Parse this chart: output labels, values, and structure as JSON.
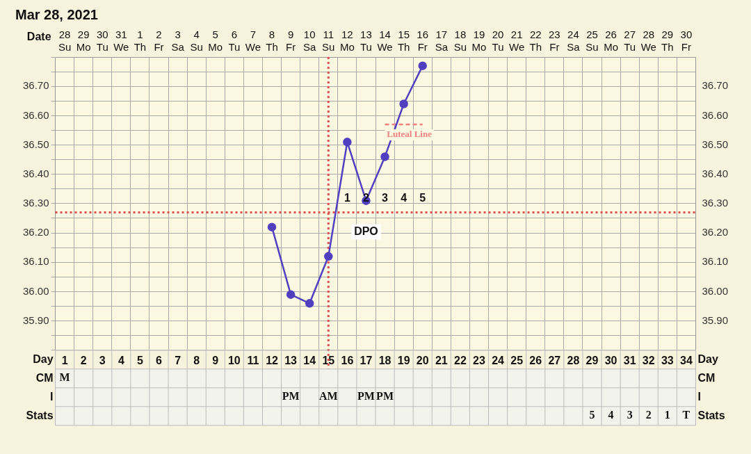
{
  "chart_data": {
    "type": "line",
    "title": "Mar 28, 2021",
    "xlabel": "Date",
    "x2label": "Day",
    "categories": [
      "28\nSu",
      "29\nMo",
      "30\nTu",
      "31\nWe",
      "1\nTh",
      "2\nFr",
      "3\nSa",
      "4\nSu",
      "5\nMo",
      "6\nTu",
      "7\nWe",
      "8\nTh",
      "9\nFr",
      "10\nSa",
      "11\nSu",
      "12\nMo",
      "13\nTu",
      "14\nWe",
      "15\nTh",
      "16\nFr",
      "17\nSa",
      "18\nSu",
      "19\nMo",
      "20\nTu",
      "21\nWe",
      "22\nTh",
      "23\nFr",
      "24\nSa",
      "25\nSu",
      "26\nMo",
      "27\nTu",
      "28\nWe",
      "29\nTh",
      "30\nFr"
    ],
    "series": [
      {
        "color": "#5040c0",
        "values": [
          null,
          null,
          null,
          null,
          null,
          null,
          null,
          null,
          null,
          null,
          null,
          36.22,
          35.99,
          35.96,
          36.12,
          36.51,
          36.31,
          36.46,
          36.64,
          36.77,
          null,
          null,
          null,
          null,
          null,
          null,
          null,
          null,
          null,
          null,
          null,
          null,
          null,
          null
        ]
      },
      {
        "name": "Luteal Line",
        "color": "#f08080",
        "line_style": "dashed",
        "marker": "none",
        "values": [
          null,
          null,
          null,
          null,
          null,
          null,
          null,
          null,
          null,
          null,
          null,
          null,
          null,
          null,
          null,
          null,
          null,
          36.57,
          36.57,
          36.57,
          null,
          null,
          null,
          null,
          null,
          null,
          null,
          null,
          null,
          null,
          null,
          null,
          null,
          null
        ]
      }
    ],
    "ylim": [
      35.8,
      36.8
    ],
    "yticks": [
      {
        "value": 35.8,
        "label": null
      },
      {
        "value": 35.85,
        "label": null
      },
      {
        "value": 35.9,
        "label": "35.90"
      },
      {
        "value": 35.95,
        "label": null
      },
      {
        "value": 36.0,
        "label": "36.00"
      },
      {
        "value": 36.05,
        "label": null
      },
      {
        "value": 36.1,
        "label": "36.10"
      },
      {
        "value": 36.15,
        "label": null
      },
      {
        "value": 36.2,
        "label": "36.20"
      },
      {
        "value": 36.25,
        "label": null
      },
      {
        "value": 36.3,
        "label": "36.30"
      },
      {
        "value": 36.35,
        "label": null
      },
      {
        "value": 36.4,
        "label": "36.40"
      },
      {
        "value": 36.45,
        "label": null
      },
      {
        "value": 36.5,
        "label": "36.50"
      },
      {
        "value": 36.55,
        "label": null
      },
      {
        "value": 36.6,
        "label": "36.60"
      },
      {
        "value": 36.65,
        "label": null
      },
      {
        "value": 36.7,
        "label": "36.70"
      },
      {
        "value": 36.75,
        "label": null
      },
      {
        "value": 36.8,
        "label": null
      }
    ],
    "y2lim": [
      35.8,
      36.8
    ],
    "y2ticks": [
      {
        "value": 35.8,
        "label": null
      },
      {
        "value": 35.85,
        "label": null
      },
      {
        "value": 35.9,
        "label": "35.90"
      },
      {
        "value": 35.95,
        "label": null
      },
      {
        "value": 36.0,
        "label": "36.00"
      },
      {
        "value": 36.05,
        "label": null
      },
      {
        "value": 36.1,
        "label": "36.10"
      },
      {
        "value": 36.15,
        "label": null
      },
      {
        "value": 36.2,
        "label": "36.20"
      },
      {
        "value": 36.25,
        "label": null
      },
      {
        "value": 36.3,
        "label": "36.30"
      },
      {
        "value": 36.35,
        "label": null
      },
      {
        "value": 36.4,
        "label": "36.40"
      },
      {
        "value": 36.45,
        "label": null
      },
      {
        "value": 36.5,
        "label": "36.50"
      },
      {
        "value": 36.55,
        "label": null
      },
      {
        "value": 36.6,
        "label": "36.60"
      },
      {
        "value": 36.65,
        "label": null
      },
      {
        "value": 36.7,
        "label": "36.70"
      },
      {
        "value": 36.75,
        "label": null
      },
      {
        "value": 36.8,
        "label": null
      }
    ],
    "x2lim": [
      0.5,
      34.5
    ],
    "x2ticks": [
      1,
      2,
      3,
      4,
      5,
      6,
      7,
      8,
      9,
      10,
      11,
      12,
      13,
      14,
      15,
      16,
      17,
      18,
      19,
      20,
      21,
      22,
      23,
      24,
      25,
      26,
      27,
      28,
      29,
      30,
      31,
      32,
      33,
      34
    ],
    "ref_lines": [
      {
        "axis": "y",
        "value": 36.27,
        "color": "#e05050",
        "line_style": "dotted"
      },
      {
        "axis": "x",
        "value": "11\nSu",
        "color": "#e05050",
        "line_style": "dotted"
      }
    ],
    "annotations": [
      "1",
      "2",
      "3",
      "4",
      "5",
      "DPO",
      "CM",
      "M",
      "I",
      "PM",
      "AM",
      "PM",
      "PM",
      "Stats",
      "5",
      "4",
      "3",
      "2",
      "1",
      "T"
    ],
    "grid": true,
    "marker": "circle",
    "legend": false
  }
}
